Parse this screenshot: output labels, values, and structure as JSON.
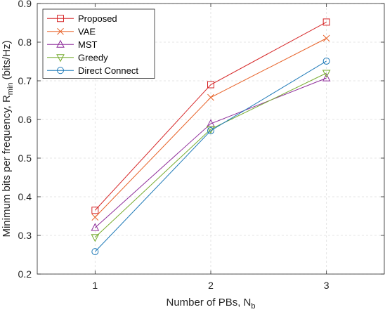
{
  "chart_data": {
    "type": "line",
    "xlabel": {
      "main": "Number of PBs, N",
      "sub": "b"
    },
    "ylabel": {
      "main": "Minimum bits per frequency, R",
      "sub": "min",
      "tail": " (bits/Hz)"
    },
    "x": [
      1,
      2,
      3
    ],
    "xlim": [
      0.5,
      3.5
    ],
    "ylim": [
      0.2,
      0.9
    ],
    "xticks": [
      "1",
      "2",
      "3"
    ],
    "yticks": [
      "0.2",
      "0.3",
      "0.4",
      "0.5",
      "0.6",
      "0.7",
      "0.8",
      "0.9"
    ],
    "grid": true,
    "legend_position": "top-left",
    "series": [
      {
        "name": "Proposed",
        "values": [
          0.365,
          0.69,
          0.852
        ],
        "color": "#d62728",
        "marker": "square"
      },
      {
        "name": "VAE",
        "values": [
          0.347,
          0.657,
          0.81
        ],
        "color": "#e8632a",
        "marker": "x"
      },
      {
        "name": "MST",
        "values": [
          0.32,
          0.589,
          0.707
        ],
        "color": "#8e2c9a",
        "marker": "triangle-up"
      },
      {
        "name": "Greedy",
        "values": [
          0.295,
          0.575,
          0.72
        ],
        "color": "#77ac30",
        "marker": "triangle-down"
      },
      {
        "name": "Direct Connect",
        "values": [
          0.258,
          0.571,
          0.751
        ],
        "color": "#1f7ab8",
        "marker": "circle"
      }
    ]
  }
}
